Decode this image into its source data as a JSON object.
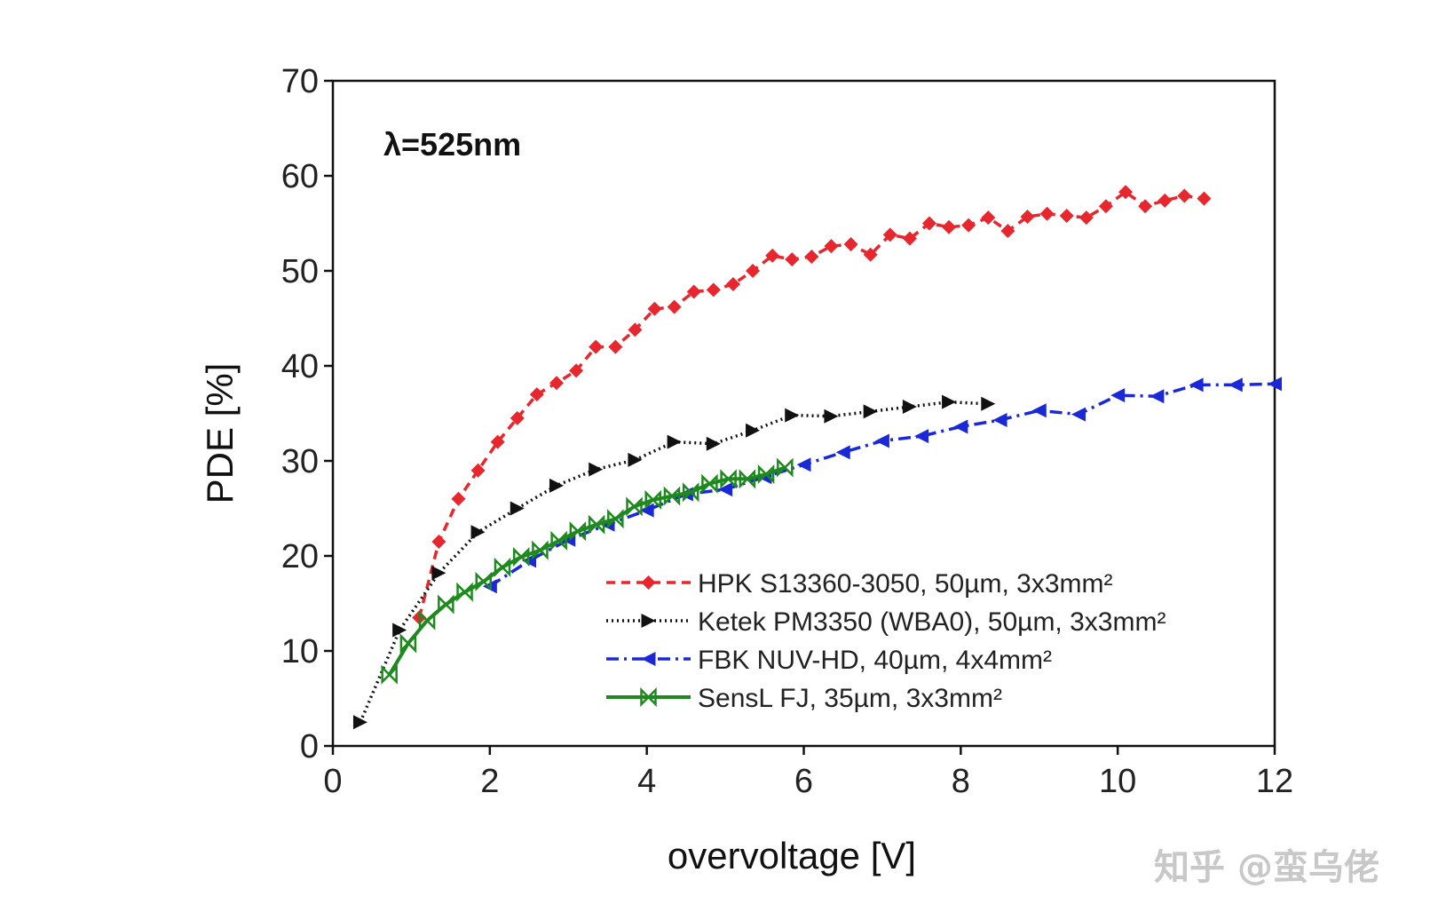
{
  "chart_data": {
    "type": "line",
    "title": "",
    "annotation": "λ=525nm",
    "xlabel": "overvoltage [V]",
    "ylabel": "PDE [%]",
    "xlim": [
      0,
      12
    ],
    "ylim": [
      0,
      70
    ],
    "xticks": [
      0,
      2,
      4,
      6,
      8,
      10,
      12
    ],
    "yticks": [
      0,
      10,
      20,
      30,
      40,
      50,
      60,
      70
    ],
    "legend_position": "bottom-right",
    "series": [
      {
        "name": "HPK S13360-3050, 50µm, 3x3mm²",
        "color": "#e8262d",
        "dash": "10,7",
        "marker": "diamond",
        "x": [
          1.1,
          1.35,
          1.6,
          1.85,
          2.1,
          2.35,
          2.6,
          2.85,
          3.1,
          3.35,
          3.6,
          3.85,
          4.1,
          4.35,
          4.6,
          4.85,
          5.1,
          5.35,
          5.6,
          5.85,
          6.1,
          6.35,
          6.6,
          6.85,
          7.1,
          7.35,
          7.6,
          7.85,
          8.1,
          8.35,
          8.6,
          8.85,
          9.1,
          9.35,
          9.6,
          9.85,
          10.1,
          10.35,
          10.6,
          10.85,
          11.1
        ],
        "y": [
          13.5,
          21.5,
          26.0,
          29.0,
          32.0,
          34.5,
          37.0,
          38.2,
          39.5,
          42.0,
          42.0,
          43.8,
          46.0,
          46.2,
          47.8,
          48.0,
          48.6,
          50.0,
          51.6,
          51.2,
          51.5,
          52.6,
          52.8,
          51.7,
          53.8,
          53.4,
          55.0,
          54.6,
          54.8,
          55.6,
          54.2,
          55.7,
          56.0,
          55.8,
          55.6,
          56.8,
          58.3,
          56.8,
          57.4,
          57.9,
          57.6
        ]
      },
      {
        "name": "Ketek PM3350 (WBA0), 50µm, 3x3mm²",
        "color": "#111111",
        "dash": "2,4",
        "marker": "triangle-right",
        "x": [
          0.35,
          0.85,
          1.35,
          1.85,
          2.35,
          2.85,
          3.35,
          3.85,
          4.35,
          4.85,
          5.35,
          5.85,
          6.35,
          6.85,
          7.35,
          7.85,
          8.35
        ],
        "y": [
          2.5,
          12.2,
          18.2,
          22.5,
          25.0,
          27.4,
          29.1,
          30.1,
          32.0,
          31.8,
          33.2,
          34.8,
          34.7,
          35.2,
          35.7,
          36.2,
          36.0
        ]
      },
      {
        "name": "FBK NUV-HD, 40µm, 4x4mm²",
        "color": "#1a28d8",
        "dash": "14,6,3,6",
        "marker": "triangle-left",
        "x": [
          2.0,
          2.5,
          3.0,
          3.5,
          4.0,
          4.5,
          5.0,
          5.5,
          6.0,
          6.5,
          7.0,
          7.5,
          8.0,
          8.5,
          9.0,
          9.5,
          10.0,
          10.5,
          11.0,
          11.5,
          12.0
        ],
        "y": [
          16.8,
          19.5,
          21.7,
          23.3,
          24.8,
          26.5,
          27.0,
          28.3,
          29.6,
          30.9,
          32.1,
          32.6,
          33.6,
          34.3,
          35.3,
          34.9,
          36.9,
          36.8,
          38.0,
          38.0,
          38.1
        ]
      },
      {
        "name": "SensL FJ, 35µm, 3x3mm²",
        "color": "#1e8a1e",
        "dash": "",
        "marker": "hourglass",
        "x": [
          0.72,
          0.96,
          1.2,
          1.44,
          1.68,
          1.92,
          2.16,
          2.4,
          2.64,
          2.88,
          3.12,
          3.36,
          3.6,
          3.84,
          4.08,
          4.32,
          4.56,
          4.8,
          5.04,
          5.28,
          5.52,
          5.76
        ],
        "y": [
          7.5,
          10.8,
          13.2,
          14.9,
          16.2,
          17.3,
          18.8,
          19.9,
          20.6,
          21.6,
          22.6,
          23.3,
          23.9,
          25.2,
          25.9,
          26.3,
          26.7,
          27.6,
          28.1,
          28.1,
          28.6,
          29.3
        ]
      }
    ]
  },
  "watermark": "知乎 @蛮乌佬"
}
